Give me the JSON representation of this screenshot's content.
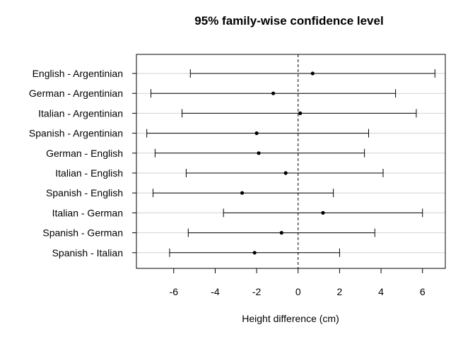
{
  "chart_data": {
    "type": "interval",
    "title": "95% family-wise confidence level",
    "xlabel": "Height difference (cm)",
    "ylabel": "",
    "xlim": [
      -7.8,
      7.1
    ],
    "xticks": [
      -6,
      -4,
      -2,
      0,
      2,
      4,
      6
    ],
    "grid": "horizontal",
    "reference_line": 0,
    "comparisons": [
      {
        "label": "English - Argentinian",
        "estimate": 0.7,
        "lower": -5.2,
        "upper": 6.6
      },
      {
        "label": "German - Argentinian",
        "estimate": -1.2,
        "lower": -7.1,
        "upper": 4.7
      },
      {
        "label": "Italian - Argentinian",
        "estimate": 0.1,
        "lower": -5.6,
        "upper": 5.7
      },
      {
        "label": "Spanish - Argentinian",
        "estimate": -2.0,
        "lower": -7.3,
        "upper": 3.4
      },
      {
        "label": "German - English",
        "estimate": -1.9,
        "lower": -6.9,
        "upper": 3.2
      },
      {
        "label": "Italian - English",
        "estimate": -0.6,
        "lower": -5.4,
        "upper": 4.1
      },
      {
        "label": "Spanish - English",
        "estimate": -2.7,
        "lower": -7.0,
        "upper": 1.7
      },
      {
        "label": "Italian - German",
        "estimate": 1.2,
        "lower": -3.6,
        "upper": 6.0
      },
      {
        "label": "Spanish - German",
        "estimate": -0.8,
        "lower": -5.3,
        "upper": 3.7
      },
      {
        "label": "Spanish - Italian",
        "estimate": -2.1,
        "lower": -6.2,
        "upper": 2.0
      }
    ]
  }
}
